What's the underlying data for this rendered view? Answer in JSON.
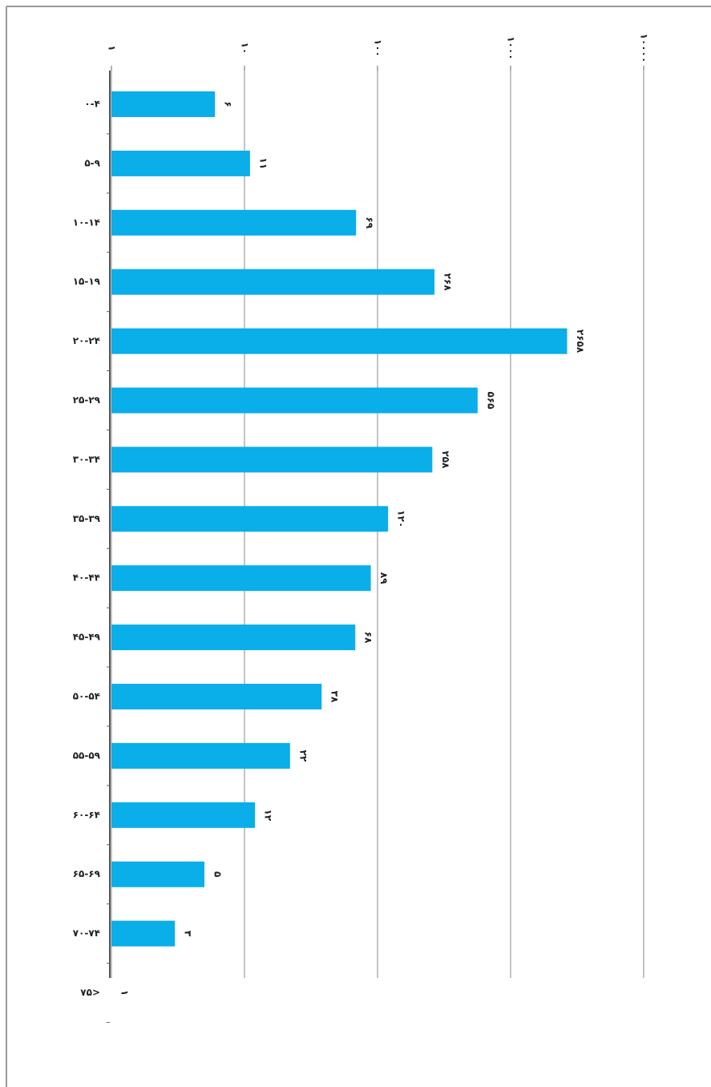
{
  "chart_data": {
    "type": "bar",
    "orientation": "horizontal",
    "xscale": "log",
    "categories": [
      "۰-۴",
      "۵-۹",
      "۱۰-۱۴",
      "۱۵-۱۹",
      "۲۰-۲۴",
      "۲۵-۲۹",
      "۳۰-۳۴",
      "۳۵-۳۹",
      "۴۰-۴۴",
      "۴۵-۴۹",
      "۵۰-۵۴",
      "۵۵-۵۹",
      "۶۰-۶۴",
      "۶۵-۶۹",
      "۷۰-۷۴",
      "۷۵>"
    ],
    "values": [
      6,
      11,
      69,
      268,
      2658,
      565,
      258,
      120,
      89,
      68,
      38,
      22,
      12,
      5,
      3,
      1
    ],
    "value_labels": [
      "۶",
      "۱۱",
      "۶۹",
      "۲۶۸",
      "۲۶۵۸",
      "۵۶۵",
      "۲۵۸",
      "۱۲۰",
      "۸۹",
      "۶۸",
      "۳۸",
      "۲۲",
      "۱۲",
      "۵",
      "۳",
      "۱"
    ],
    "color": "#0aaee8",
    "xlim": [
      1,
      10000
    ],
    "xticks": [
      {
        "value": 1,
        "label": "۱"
      },
      {
        "value": 10,
        "label": "۱۰"
      },
      {
        "value": 100,
        "label": "۱۰۰"
      },
      {
        "value": 1000,
        "label": "۱۰۰۰"
      },
      {
        "value": 10000,
        "label": "۱۰۰۰۰"
      }
    ],
    "grid": true
  }
}
